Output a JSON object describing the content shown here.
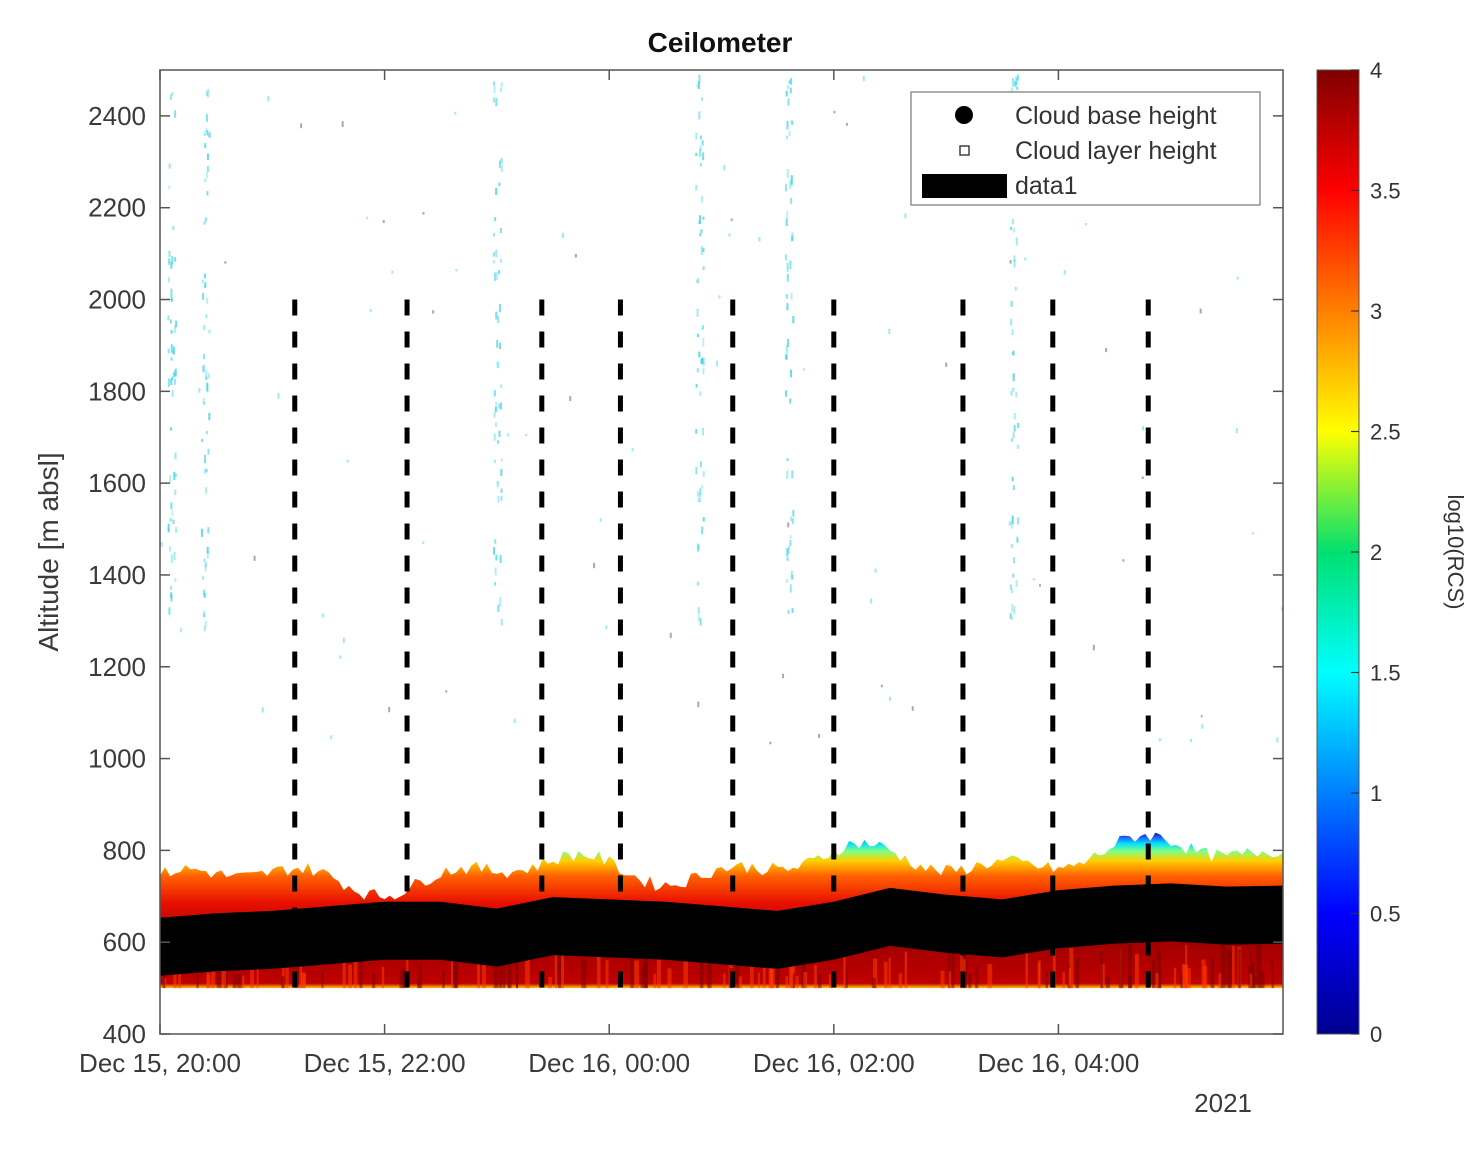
{
  "chart_data": {
    "type": "heatmap",
    "title": "Ceilometer",
    "ylabel": "Altitude [m absl]",
    "xlabel": "",
    "year_label": "2021",
    "ylim": [
      400,
      2500
    ],
    "xlim": [
      "2021-12-15 20:00",
      "2021-12-16 06:00"
    ],
    "x_ticks": [
      "Dec 15, 20:00",
      "Dec 15, 22:00",
      "Dec 16, 00:00",
      "Dec 16, 02:00",
      "Dec 16, 04:00"
    ],
    "x_tick_hours": [
      0,
      2,
      4,
      6,
      8
    ],
    "y_ticks": [
      400,
      600,
      800,
      1000,
      1200,
      1400,
      1600,
      1800,
      2000,
      2200,
      2400
    ],
    "grid": false,
    "legend_position": "top-right",
    "legend": [
      {
        "label": "Cloud base height",
        "marker": "filled-circle"
      },
      {
        "label": "Cloud layer height",
        "marker": "open-square"
      },
      {
        "label": "data1",
        "marker": "thick-bar"
      }
    ],
    "colorbar": {
      "label": "log10(RCS)",
      "range": [
        0,
        4
      ],
      "ticks": [
        "0",
        "0.5",
        "1",
        "1.5",
        "2",
        "2.5",
        "3",
        "3.5",
        "4"
      ],
      "tick_values": [
        0,
        0.5,
        1,
        1.5,
        2,
        2.5,
        3,
        3.5,
        4
      ],
      "colormap": "jet"
    },
    "signal_layer": {
      "bottom_altitude": 500,
      "top_altitude_start": 730,
      "top_altitude_end": 800
    },
    "cloud_base_height": {
      "x_hours": [
        0,
        0.5,
        1,
        1.5,
        2,
        2.5,
        3,
        3.5,
        4,
        4.5,
        5,
        5.5,
        6,
        6.5,
        7,
        7.5,
        8,
        8.5,
        9,
        9.5,
        10
      ],
      "altitude": [
        590,
        600,
        605,
        615,
        625,
        625,
        610,
        635,
        630,
        625,
        615,
        605,
        625,
        655,
        640,
        630,
        650,
        660,
        665,
        658,
        660
      ]
    },
    "vertical_dashed_lines_hours": [
      1.2,
      2.2,
      3.4,
      4.1,
      5.1,
      6.0,
      7.15,
      7.95,
      8.8
    ],
    "vertical_dashed_lines_top": 2000
  },
  "colors": {
    "dashed_line": "#000000",
    "cloud_base": "#000000",
    "scatter": "#40d6e6"
  }
}
